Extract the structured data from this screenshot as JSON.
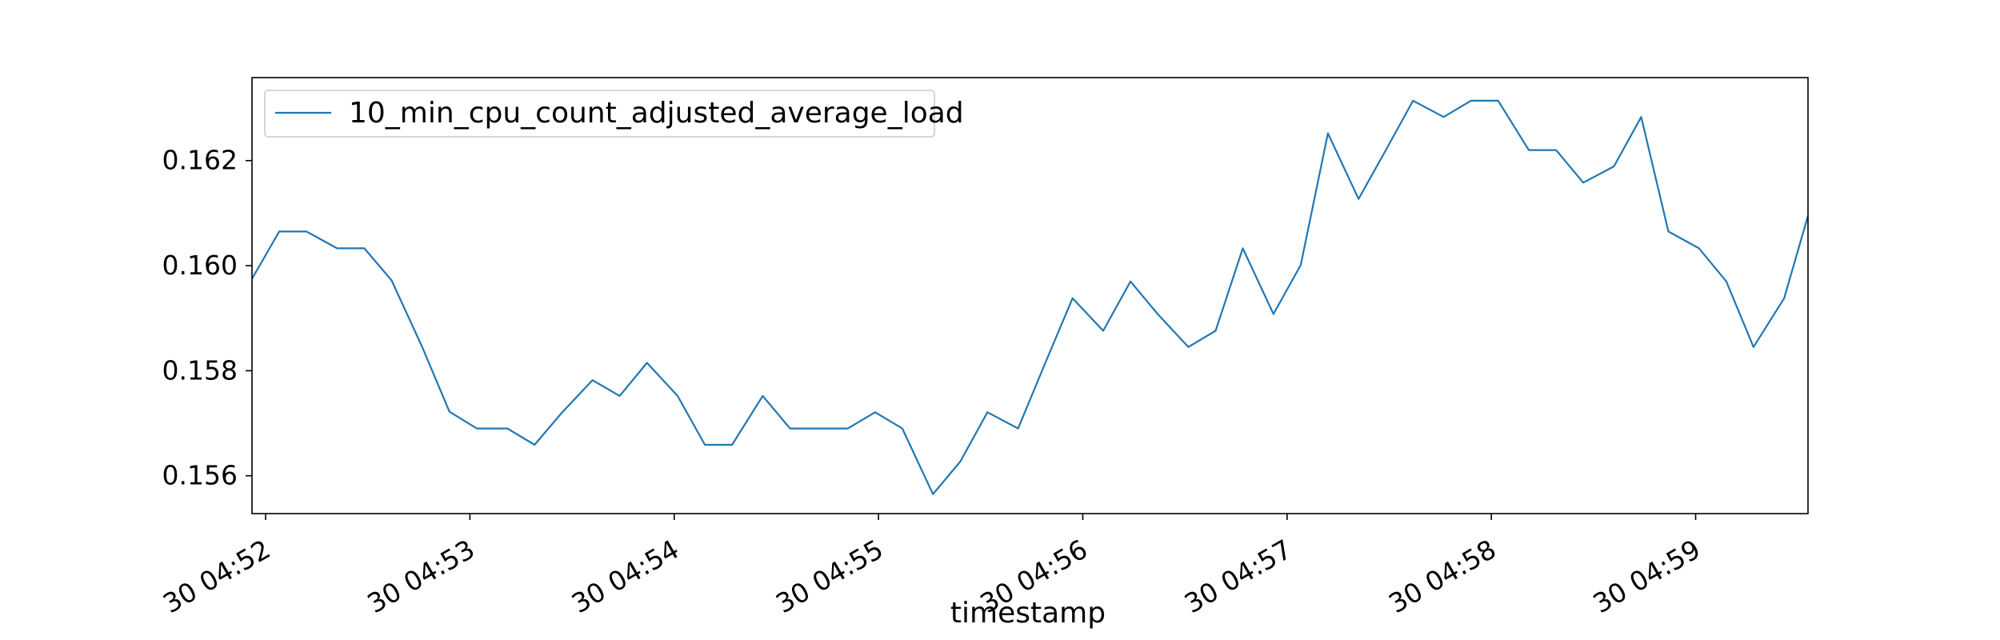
{
  "chart_data": {
    "type": "line",
    "title": "",
    "xlabel": "timestamp",
    "ylabel": "",
    "ylim": [
      0.15528,
      0.16358
    ],
    "xlim": [
      "04:51:56",
      "04:59:33"
    ],
    "grid": false,
    "legend": {
      "placement": "top-left",
      "entries": [
        "10_min_cpu_count_adjusted_average_load"
      ]
    },
    "x_ticks": [
      {
        "value": "04:52:00",
        "label": "30 04:52"
      },
      {
        "value": "04:53:00",
        "label": "30 04:53"
      },
      {
        "value": "04:54:00",
        "label": "30 04:54"
      },
      {
        "value": "04:55:00",
        "label": "30 04:55"
      },
      {
        "value": "04:56:00",
        "label": "30 04:56"
      },
      {
        "value": "04:57:00",
        "label": "30 04:57"
      },
      {
        "value": "04:58:00",
        "label": "30 04:58"
      },
      {
        "value": "04:59:00",
        "label": "30 04:59"
      }
    ],
    "y_ticks": [
      {
        "value": 0.156,
        "label": "0.156"
      },
      {
        "value": 0.158,
        "label": "0.158"
      },
      {
        "value": 0.16,
        "label": "0.160"
      },
      {
        "value": 0.162,
        "label": "0.162"
      }
    ],
    "series": [
      {
        "name": "10_min_cpu_count_adjusted_average_load",
        "color": "#1f77b4",
        "x": [
          "04:51:56",
          "04:52:04",
          "04:52:12",
          "04:52:21",
          "04:52:29",
          "04:52:37",
          "04:52:46",
          "04:52:54",
          "04:53:02",
          "04:53:11",
          "04:53:19",
          "04:53:27",
          "04:53:36",
          "04:53:44",
          "04:53:52",
          "04:54:01",
          "04:54:09",
          "04:54:17",
          "04:54:26",
          "04:54:34",
          "04:54:42",
          "04:54:51",
          "04:54:59",
          "04:55:07",
          "04:55:16",
          "04:55:24",
          "04:55:32",
          "04:55:41",
          "04:55:49",
          "04:55:57",
          "04:56:06",
          "04:56:14",
          "04:56:22",
          "04:56:31",
          "04:56:39",
          "04:56:47",
          "04:56:56",
          "04:57:04",
          "04:57:12",
          "04:57:21",
          "04:57:29",
          "04:57:37",
          "04:57:46",
          "04:57:54",
          "04:58:02",
          "04:58:11",
          "04:58:19",
          "04:58:27",
          "04:58:36",
          "04:58:44",
          "04:58:52",
          "04:59:01",
          "04:59:09",
          "04:59:17",
          "04:59:26",
          "04:59:33"
        ],
        "values": [
          0.15975,
          0.16065,
          0.16065,
          0.16033,
          0.16033,
          0.15972,
          0.15845,
          0.15722,
          0.1569,
          0.1569,
          0.15659,
          0.1572,
          0.15782,
          0.15752,
          0.15815,
          0.15752,
          0.15659,
          0.15659,
          0.15752,
          0.1569,
          0.1569,
          0.1569,
          0.15721,
          0.1569,
          0.15565,
          0.15627,
          0.15721,
          0.1569,
          0.15815,
          0.15938,
          0.15876,
          0.1597,
          0.15908,
          0.15845,
          0.15876,
          0.16033,
          0.15908,
          0.16001,
          0.16252,
          0.16127,
          0.1622,
          0.16314,
          0.16283,
          0.16314,
          0.16314,
          0.1622,
          0.1622,
          0.16158,
          0.16189,
          0.16283,
          0.16065,
          0.16033,
          0.1597,
          0.15845,
          0.15938,
          0.16095
        ]
      }
    ]
  }
}
